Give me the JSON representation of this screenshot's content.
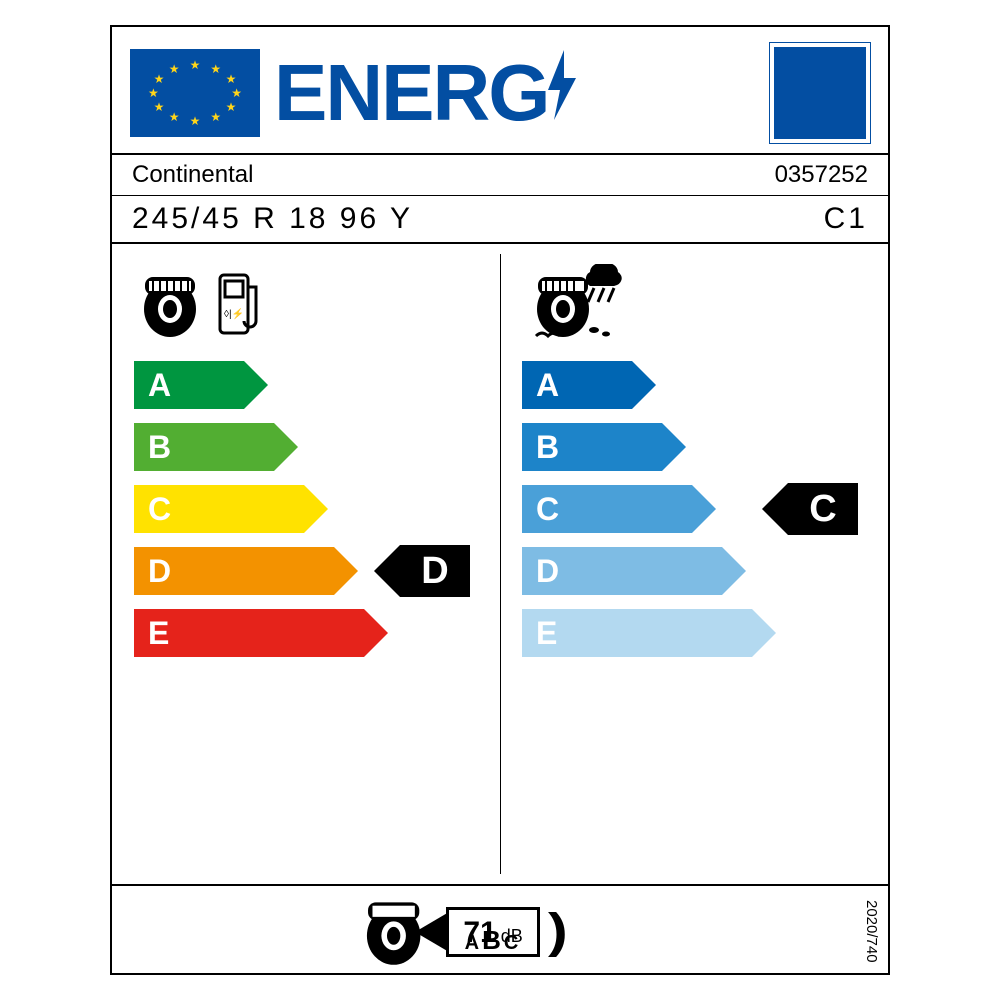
{
  "header": {
    "word": "ENERG",
    "flag_bg": "#034ea2",
    "star_color": "#ffd51a"
  },
  "brand": "Continental",
  "article": "0357252",
  "size": "245/45 R 18 96 Y",
  "class": "C1",
  "fuel": {
    "grades": [
      "A",
      "B",
      "C",
      "D",
      "E"
    ],
    "colors": [
      "#009640",
      "#52ae32",
      "#ffe200",
      "#f39200",
      "#e5231b"
    ],
    "widths": [
      110,
      140,
      170,
      200,
      230
    ],
    "rating": "D",
    "rating_index": 3
  },
  "wet": {
    "grades": [
      "A",
      "B",
      "C",
      "D",
      "E"
    ],
    "colors": [
      "#0066b3",
      "#1d84c9",
      "#4aa0d8",
      "#7ebce4",
      "#b3d9f0"
    ],
    "widths": [
      110,
      140,
      170,
      200,
      230
    ],
    "rating": "C",
    "rating_index": 2
  },
  "noise": {
    "value": "71",
    "unit": "dB",
    "class_letters": "ABC",
    "highlight_index": 1
  },
  "regulation": "2020/740"
}
